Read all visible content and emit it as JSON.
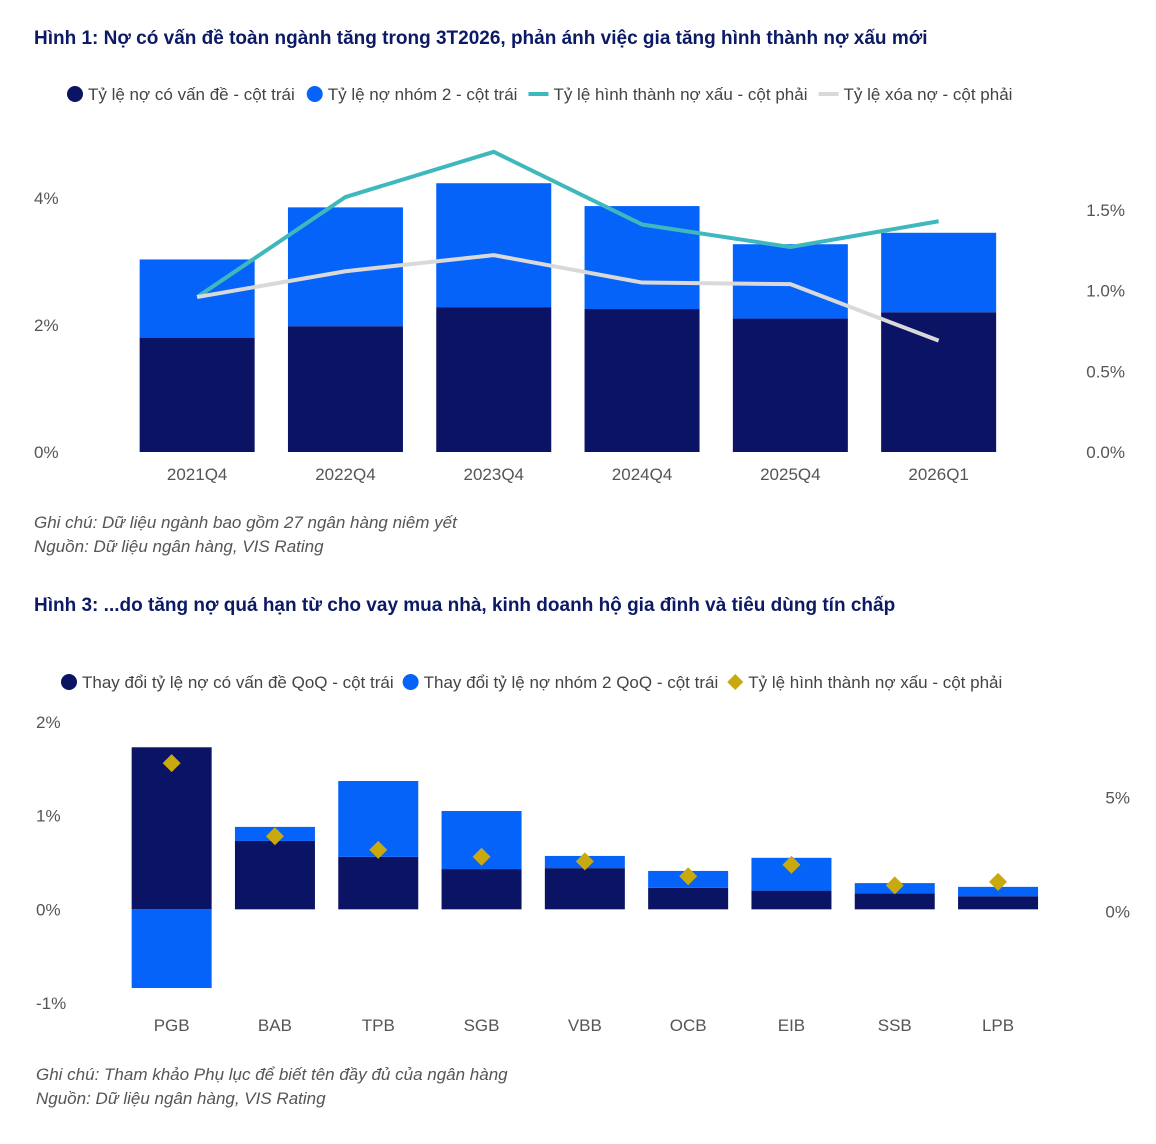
{
  "figure1": {
    "title": "Hình 1: Nợ có vấn đề toàn ngành tăng trong 3T2026, phản ánh việc gia tăng hình thành nợ xấu mới",
    "notes": [
      "Ghi chú: Dữ liệu ngành bao gồm 27 ngân hàng niêm yết",
      "Nguồn: Dữ liệu ngân hàng, VIS Rating"
    ]
  },
  "figure2": {
    "title": "Hình 3: ...do tăng nợ quá hạn từ cho vay mua nhà, kinh doanh hộ gia đình và tiêu dùng tín chấp",
    "notes": [
      "Ghi chú: Tham khảo Phụ lục để biết tên đầy đủ của ngân hàng",
      "Nguồn: Dữ liệu ngân hàng, VIS Rating"
    ]
  },
  "colors": {
    "dark": "#0b1464",
    "blue": "#0563fa",
    "teal": "#3fb8bd",
    "grey": "#d9d9d9",
    "gold": "#c9a90e"
  },
  "chart_data": [
    {
      "type": "bar",
      "stacked": true,
      "categories": [
        "2021Q4",
        "2022Q4",
        "2023Q4",
        "2024Q4",
        "2025Q4",
        "2026Q1"
      ],
      "series": [
        {
          "name": "Tỷ lệ nợ có vấn đề - cột trái",
          "kind": "bar",
          "axis": "left",
          "color": "#0b1464",
          "values": [
            1.8,
            1.98,
            2.28,
            2.25,
            2.1,
            2.2
          ]
        },
        {
          "name": "Tỷ lệ nợ nhóm 2 - cột trái",
          "kind": "bar",
          "axis": "left",
          "color": "#0563fa",
          "values": [
            1.23,
            1.87,
            1.95,
            1.62,
            1.17,
            1.25
          ]
        },
        {
          "name": "Tỷ lệ hình thành nợ xấu - cột phải",
          "kind": "line",
          "axis": "right",
          "color": "#3fb8bd",
          "values": [
            0.96,
            1.58,
            1.86,
            1.41,
            1.27,
            1.43
          ]
        },
        {
          "name": "Tỷ lệ xóa nợ - cột phải",
          "kind": "line",
          "axis": "right",
          "color": "#d9d9d9",
          "values": [
            0.96,
            1.12,
            1.22,
            1.05,
            1.04,
            0.69
          ]
        }
      ],
      "y_left": {
        "ticks": [
          "0%",
          "2%",
          "4%"
        ],
        "range": [
          0,
          4.8
        ],
        "tick_values": [
          0,
          2,
          4
        ]
      },
      "y_right": {
        "ticks": [
          "0.0%",
          "0.5%",
          "1.0%",
          "1.5%"
        ],
        "range": [
          0,
          1.89
        ],
        "tick_values": [
          0,
          0.5,
          1.0,
          1.5
        ]
      },
      "legend": "top",
      "grid": false
    },
    {
      "type": "bar",
      "stacked": true,
      "categories": [
        "PGB",
        "BAB",
        "TPB",
        "SGB",
        "VBB",
        "OCB",
        "EIB",
        "SSB",
        "LPB"
      ],
      "series": [
        {
          "name": "Thay đổi tỷ lệ nợ có vấn đề QoQ - cột trái",
          "kind": "bar",
          "axis": "left",
          "color": "#0b1464",
          "values": [
            1.73,
            0.73,
            0.56,
            0.43,
            0.44,
            0.23,
            0.2,
            0.17,
            0.14
          ]
        },
        {
          "name": "Thay đổi tỷ lệ nợ nhóm 2 QoQ - cột trái",
          "kind": "bar",
          "axis": "left",
          "color": "#0563fa",
          "values": [
            -0.84,
            0.15,
            0.81,
            0.62,
            0.13,
            0.18,
            0.35,
            0.11,
            0.1
          ]
        },
        {
          "name": "Tỷ lệ hình thành nợ xấu - cột phải",
          "kind": "scatter",
          "axis": "right",
          "color": "#c9a90e",
          "values": [
            6.5,
            3.3,
            2.7,
            2.4,
            2.2,
            1.55,
            2.05,
            1.15,
            1.3
          ]
        }
      ],
      "y_left": {
        "ticks": [
          "-1%",
          "0%",
          "1%",
          "2%"
        ],
        "range": [
          -1,
          2
        ],
        "tick_values": [
          -1,
          0,
          1,
          2
        ]
      },
      "y_right": {
        "ticks": [
          "0%",
          "5%"
        ],
        "range": [
          -4,
          8.3
        ],
        "tick_values": [
          0,
          5
        ]
      },
      "legend": "top",
      "grid": false
    }
  ]
}
